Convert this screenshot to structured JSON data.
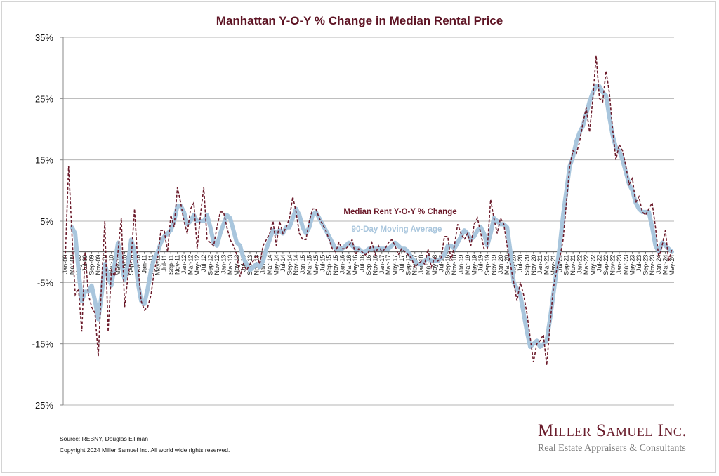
{
  "chart_data": {
    "type": "line",
    "title": "Manhattan Y-O-Y % Change in Median Rental Price",
    "xlabel": "",
    "ylabel": "",
    "ylim": [
      -25,
      35
    ],
    "y_ticks": [
      "35%",
      "25%",
      "15%",
      "5%",
      "-5%",
      "-15%",
      "-25%"
    ],
    "y_tick_values": [
      35,
      25,
      15,
      5,
      -5,
      -15,
      -25
    ],
    "grid": true,
    "x_start": "Jan-09",
    "x_end": "May-24",
    "x_tick_labels": [
      "Jan-09",
      "Mar-09",
      "May-09",
      "Jul-09",
      "Sep-09",
      "Nov-09",
      "Jan-10",
      "Mar-10",
      "May-10",
      "Jul-10",
      "Sep-10",
      "Nov-10",
      "Jan-11",
      "Mar-11",
      "May-11",
      "Jul-11",
      "Sep-11",
      "Nov-11",
      "Jan-12",
      "Mar-12",
      "May-12",
      "Jul-12",
      "Sep-12",
      "Nov-12",
      "Jan-13",
      "Mar-13",
      "May-13",
      "Jul-13",
      "Sep-13",
      "Nov-13",
      "Jan-14",
      "Mar-14",
      "May-14",
      "Jul-14",
      "Sep-14",
      "Nov-14",
      "Jan-15",
      "Mar-15",
      "May-15",
      "Jul-15",
      "Sep-15",
      "Nov-15",
      "Jan-16",
      "Mar-16",
      "May-16",
      "Jul-16",
      "Sep-16",
      "Nov-16",
      "Jan-17",
      "Mar-17",
      "May-17",
      "Jul-17",
      "Sep-17",
      "Nov-17",
      "Jan-18",
      "Mar-18",
      "May-18",
      "Jul-18",
      "Sep-18",
      "Nov-18",
      "Jan-19",
      "Mar-19",
      "May-19",
      "Jul-19",
      "Sep-19",
      "Nov-19",
      "Jan-20",
      "Mar-20",
      "May-20",
      "Jul-20",
      "Sep-20",
      "Nov-20",
      "Jan-21",
      "Mar-21",
      "May-21",
      "Jul-21",
      "Sep-21",
      "Nov-21",
      "Jan-22",
      "Mar-22",
      "May-22",
      "Jul-22",
      "Sep-22",
      "Nov-22",
      "Jan-23",
      "Mar-23",
      "May-23",
      "Jul-23",
      "Sep-23",
      "Nov-23",
      "Jan-24",
      "Mar-24",
      "May-24"
    ],
    "legend_placement": "center",
    "series": [
      {
        "name": "Median Rent Y-O-Y % Change",
        "color": "#6b1a2a",
        "style": "dashed",
        "values": [
          -1,
          14,
          3,
          -7,
          -6,
          -13,
          0,
          -7,
          -9,
          -10,
          -17,
          -5,
          5,
          -13,
          -3,
          -4,
          0,
          5.5,
          -9,
          -4,
          -1,
          7,
          -2,
          -8,
          -9.5,
          -9,
          -7,
          -3,
          -1,
          3.5,
          3.5,
          0,
          6,
          4,
          10.5,
          8,
          5,
          3,
          7,
          8,
          0.5,
          6,
          10.5,
          2,
          1.5,
          1,
          4,
          6.5,
          6.5,
          4,
          2,
          1,
          -0.5,
          -4,
          -2,
          -3,
          -2,
          -1.5,
          -0.5,
          -2,
          1,
          2,
          3,
          5,
          1,
          5,
          3,
          4,
          5.5,
          9,
          6.5,
          3,
          2,
          2,
          5,
          7,
          7,
          5.5,
          4.5,
          3.5,
          2,
          0.5,
          0,
          1.5,
          0.5,
          0.5,
          1,
          2,
          -0.5,
          0.5,
          0,
          -0.5,
          0,
          1.5,
          -0.5,
          1,
          0,
          0.5,
          1.5,
          2,
          1,
          -0.5,
          0.5,
          0,
          -0.5,
          -1,
          -2.5,
          -2,
          -1.5,
          -2,
          0.5,
          -2.5,
          -1,
          -1.5,
          -1,
          2.5,
          2.5,
          -1.5,
          1,
          4.5,
          3,
          2,
          3,
          1,
          4.5,
          5.5,
          3,
          0.5,
          0.5,
          8.5,
          5.5,
          3,
          5.5,
          4.5,
          1,
          -2,
          -5,
          -8,
          -5,
          -7,
          -10,
          -14,
          -18,
          -15,
          -14.5,
          -13.5,
          -18.5,
          -12,
          -6,
          -3,
          -1,
          2,
          8,
          14,
          16.5,
          16,
          18,
          21,
          23.5,
          19.5,
          25,
          32,
          25,
          24.5,
          29.5,
          26,
          20,
          15,
          17.5,
          16.5,
          14,
          11,
          12,
          8,
          9,
          6.5,
          6,
          7,
          8,
          4,
          -1,
          1,
          3.5,
          -1.5,
          0.5
        ]
      },
      {
        "name": "90-Day Moving Average",
        "color": "#a9c6dd",
        "style": "solid",
        "values": [
          null,
          null,
          4,
          3,
          -3,
          -8,
          -6.5,
          -6.5,
          -5.5,
          -8,
          -11,
          -7,
          -2,
          -4,
          -5.5,
          -2,
          1.5,
          -2,
          -4.5,
          -2,
          2,
          0,
          -5,
          -8,
          -8.5,
          -6,
          -3,
          -1,
          0,
          1.5,
          2.5,
          3,
          3.5,
          5,
          7.5,
          7.5,
          6.5,
          4.5,
          5,
          6,
          5,
          5,
          5,
          6,
          4,
          1.5,
          1,
          3,
          4.5,
          6,
          5.5,
          3.5,
          1.5,
          1,
          -1,
          -2,
          -3,
          -2.5,
          -2,
          -2.5,
          -1.5,
          0.5,
          2,
          3.5,
          3,
          3.5,
          3,
          4,
          4,
          5.5,
          7,
          6,
          4,
          3,
          4,
          6,
          6.5,
          5.5,
          4.5,
          3.5,
          2.5,
          1.5,
          0.5,
          0.5,
          0.5,
          1,
          1.5,
          1,
          0.5,
          0.5,
          0,
          0,
          0.5,
          0.5,
          0.5,
          0.5,
          0.5,
          0.5,
          0.5,
          1,
          1.5,
          1,
          0.5,
          0.5,
          0,
          -1,
          -1.5,
          -2,
          -2,
          -1.5,
          -1,
          -1.5,
          -1.5,
          -1.5,
          -1,
          -0.5,
          1,
          1,
          0.5,
          1.5,
          2.5,
          3.5,
          3,
          2,
          2.5,
          3.5,
          4,
          3,
          1,
          3,
          5.5,
          5,
          4.5,
          4.5,
          4,
          0,
          -5,
          -6,
          -7,
          -10,
          -13,
          -15.5,
          -15,
          -14.5,
          -15.5,
          -15,
          -14.5,
          -11,
          -7,
          -3,
          1,
          6,
          10,
          14,
          15.5,
          18,
          19.5,
          20.5,
          22.5,
          24.5,
          26,
          27,
          27,
          26,
          25.5,
          22,
          19,
          17,
          16.5,
          15,
          13,
          11,
          10,
          8,
          7,
          6.5,
          6.5,
          6.5,
          4,
          1,
          0,
          1.5,
          1,
          0.5,
          0
        ]
      }
    ]
  },
  "footer": {
    "source": "Source: REBNY, Douglas Elliman",
    "copyright": "Copyright 2024 Miller Samuel Inc.  All world wide rights reserved."
  },
  "logo": {
    "name": "Miller Samuel Inc.",
    "tagline": "Real Estate Appraisers & Consultants"
  }
}
